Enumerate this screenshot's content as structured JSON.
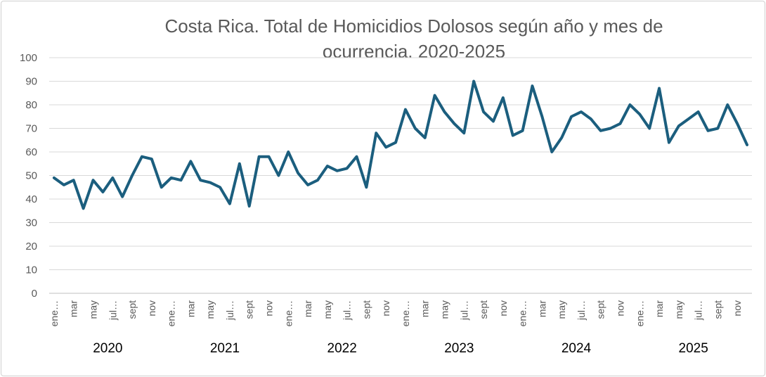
{
  "chart_data": {
    "type": "line",
    "title_lines": [
      "Costa Rica. Total de Homicidios Dolosos según año y mes de",
      "ocurrencia. 2020-2025"
    ],
    "title": "Costa Rica. Total de Homicidios Dolosos según año y mes de ocurrencia. 2020-2025",
    "xlabel": "",
    "ylabel": "",
    "ylim": [
      0,
      100
    ],
    "yticks": [
      "0",
      "10",
      "20",
      "30",
      "40",
      "50",
      "60",
      "70",
      "80",
      "90",
      "100"
    ],
    "grid": true,
    "legend": "none",
    "line_color": "#1b5e7e",
    "years": [
      "2020",
      "2021",
      "2022",
      "2023",
      "2024",
      "2025"
    ],
    "month_tick_labels": [
      "ene…",
      "mar",
      "may",
      "jul…",
      "sept",
      "nov"
    ],
    "series": [
      {
        "name": "Homicidios dolosos",
        "values": [
          49,
          46,
          48,
          36,
          48,
          43,
          49,
          41,
          50,
          58,
          57,
          45,
          49,
          48,
          56,
          48,
          47,
          45,
          38,
          55,
          37,
          58,
          58,
          50,
          60,
          51,
          46,
          48,
          54,
          52,
          53,
          58,
          45,
          68,
          62,
          64,
          78,
          70,
          66,
          84,
          77,
          72,
          68,
          90,
          77,
          73,
          83,
          67,
          69,
          88,
          75,
          60,
          66,
          75,
          77,
          74,
          69,
          70,
          72,
          80,
          76,
          70,
          87,
          64,
          71,
          74,
          77,
          69,
          70,
          80,
          72,
          63
        ]
      }
    ]
  }
}
